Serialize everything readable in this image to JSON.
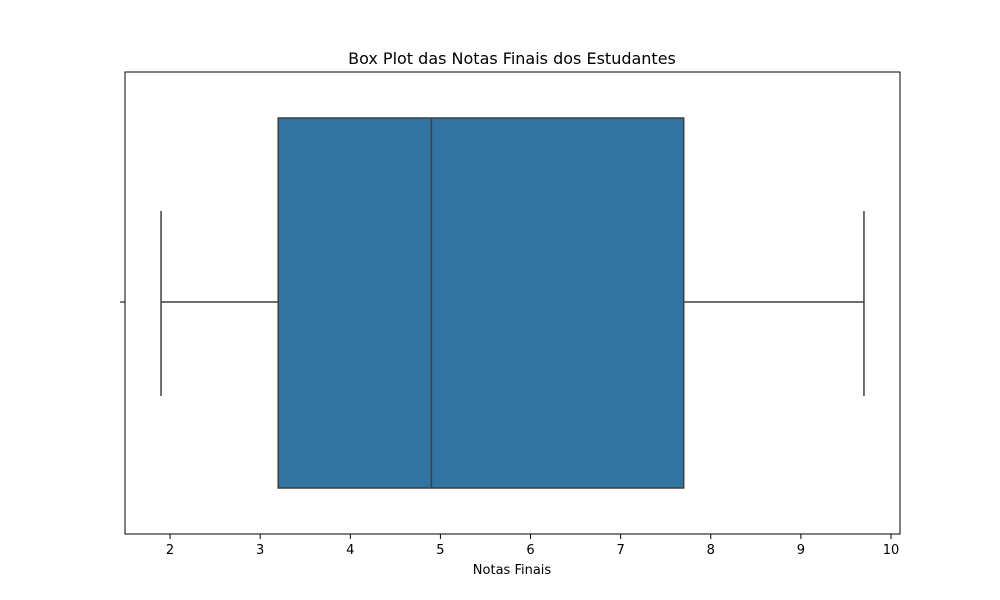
{
  "chart_data": {
    "type": "box",
    "title": "Box Plot das Notas Finais dos Estudantes",
    "xlabel": "Notas Finais",
    "ylabel": "",
    "xlim": [
      1.5,
      10.1
    ],
    "x_ticks": [
      2,
      3,
      4,
      5,
      6,
      7,
      8,
      9,
      10
    ],
    "x_tick_labels": [
      "2",
      "3",
      "4",
      "5",
      "6",
      "7",
      "8",
      "9",
      "10"
    ],
    "grid": false,
    "orientation": "horizontal",
    "series": [
      {
        "whisker_low": 1.9,
        "q1": 3.2,
        "median": 4.9,
        "q3": 7.7,
        "whisker_high": 9.7
      }
    ],
    "colors": {
      "box_fill": "#3274a1",
      "line": "#3f3f3f",
      "axis": "#000000",
      "background": "#ffffff"
    }
  }
}
